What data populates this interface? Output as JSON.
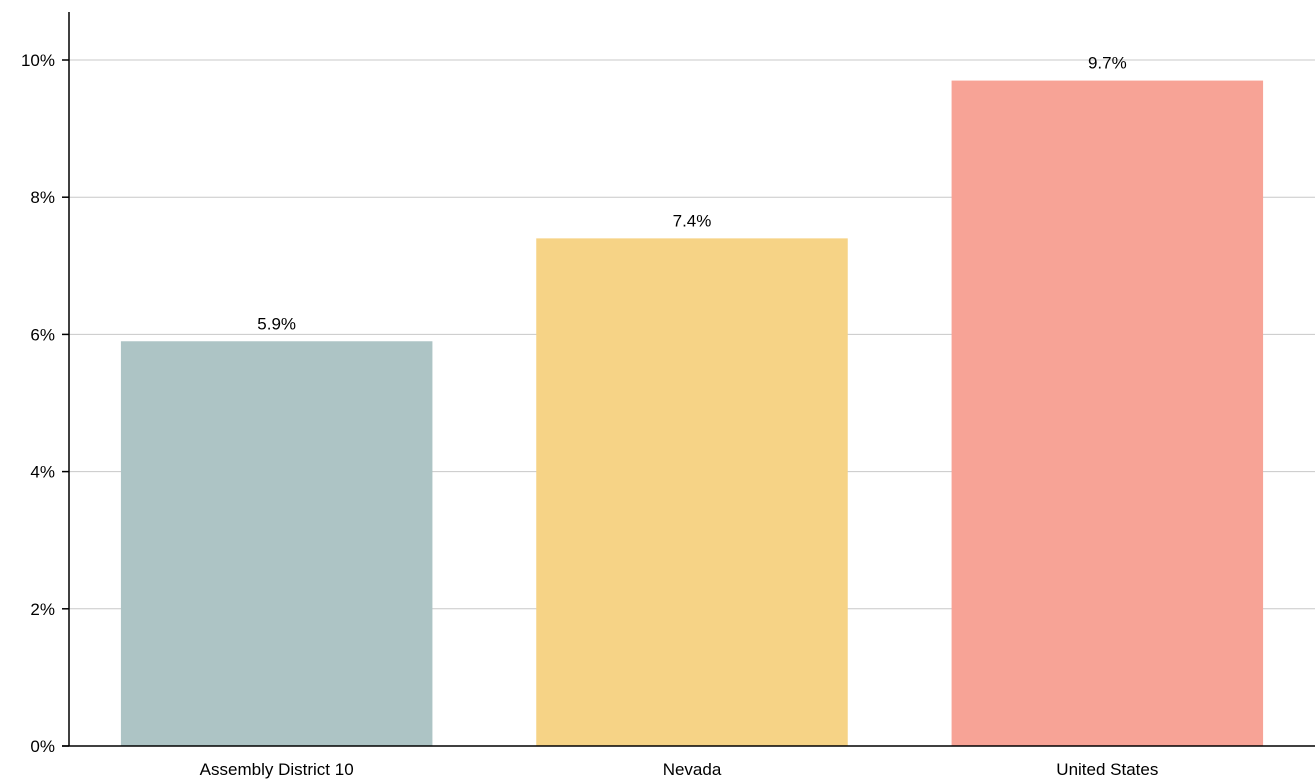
{
  "chart_data": {
    "type": "bar",
    "categories": [
      "Assembly District 10",
      "Nevada",
      "United States"
    ],
    "values": [
      5.9,
      7.4,
      9.7
    ],
    "value_labels": [
      "5.9%",
      "7.4%",
      "9.7%"
    ],
    "colors": [
      "#adc4c5",
      "#f6d386",
      "#f7a396"
    ],
    "title": "",
    "xlabel": "",
    "ylabel": "",
    "ylim": [
      0,
      10
    ],
    "yticks": [
      0,
      2,
      4,
      6,
      8,
      10
    ],
    "ytick_labels": [
      "0%",
      "2%",
      "4%",
      "6%",
      "8%",
      "10%"
    ],
    "grid": true,
    "legend": "none"
  }
}
